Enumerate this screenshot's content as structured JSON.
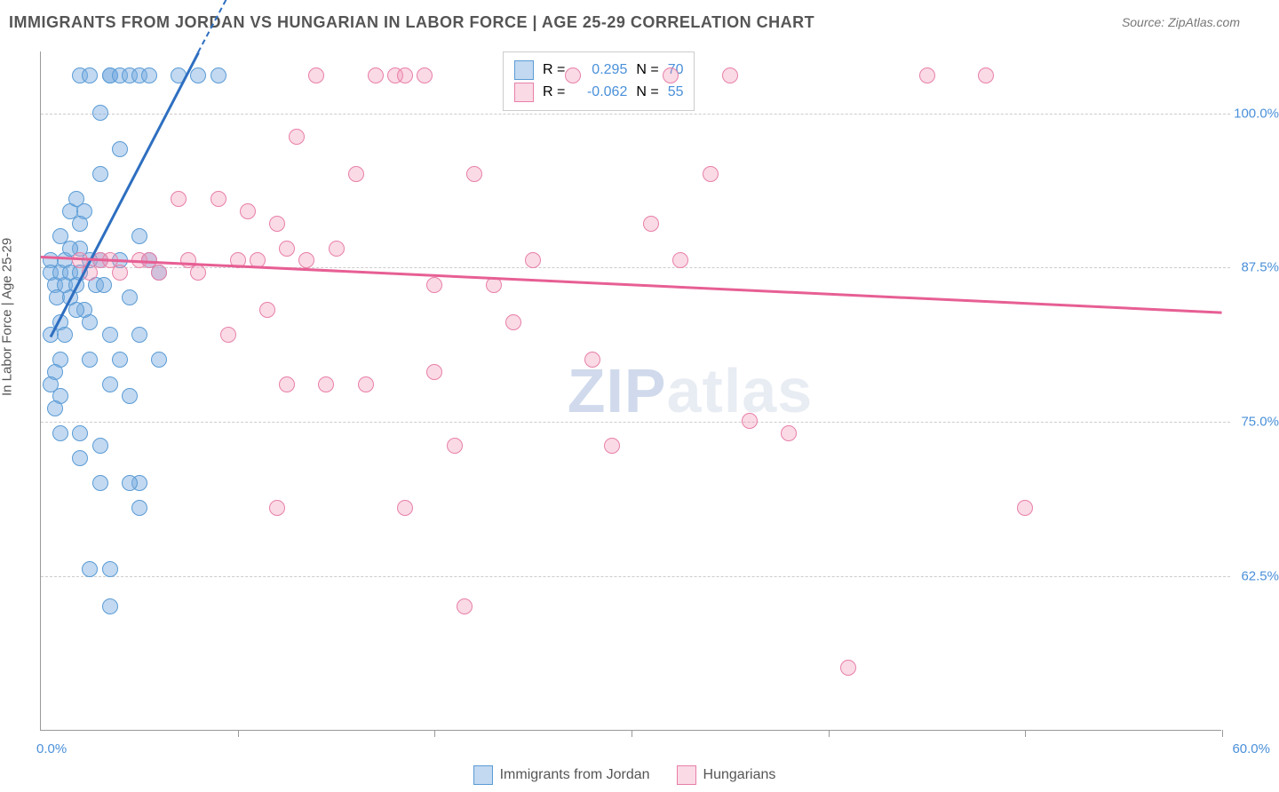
{
  "title": "IMMIGRANTS FROM JORDAN VS HUNGARIAN IN LABOR FORCE | AGE 25-29 CORRELATION CHART",
  "source": "Source: ZipAtlas.com",
  "watermark_a": "ZIP",
  "watermark_b": "atlas",
  "chart": {
    "type": "scatter",
    "ylabel": "In Labor Force | Age 25-29",
    "xlim": [
      0,
      60
    ],
    "ylim": [
      50,
      105
    ],
    "x_axis_left_label": "0.0%",
    "x_axis_right_label": "60.0%",
    "xtick_positions": [
      10,
      20,
      30,
      40,
      50,
      60
    ],
    "ytick_labels": [
      "62.5%",
      "75.0%",
      "87.5%",
      "100.0%"
    ],
    "ytick_values": [
      62.5,
      75.0,
      87.5,
      100.0
    ],
    "grid_color": "#cccccc",
    "background_color": "#ffffff",
    "marker_radius": 9,
    "series": [
      {
        "name": "Immigrants from Jordan",
        "color_fill": "rgba(120,170,225,0.45)",
        "color_stroke": "#5a9bd5",
        "trend_color": "#2e6fc0",
        "R": "0.295",
        "N": "70",
        "trend": {
          "x1": 0.5,
          "y1": 82.0,
          "x2": 8.0,
          "y2": 105.0
        },
        "trend_dash": {
          "x1": 8.0,
          "y1": 105.0,
          "x2": 12.0,
          "y2": 117.0
        },
        "points": [
          [
            0.5,
            88
          ],
          [
            0.5,
            87
          ],
          [
            0.7,
            86
          ],
          [
            0.8,
            85
          ],
          [
            1.0,
            87
          ],
          [
            1.0,
            90
          ],
          [
            1.2,
            88
          ],
          [
            1.2,
            86
          ],
          [
            1.5,
            87
          ],
          [
            1.5,
            85
          ],
          [
            1.5,
            92
          ],
          [
            1.8,
            86
          ],
          [
            2.0,
            87
          ],
          [
            2.0,
            89
          ],
          [
            2.2,
            92
          ],
          [
            2.2,
            84
          ],
          [
            2.5,
            88
          ],
          [
            2.5,
            83
          ],
          [
            2.5,
            80
          ],
          [
            2.8,
            86
          ],
          [
            3.0,
            100
          ],
          [
            3.0,
            95
          ],
          [
            3.0,
            88
          ],
          [
            3.2,
            86
          ],
          [
            3.5,
            103
          ],
          [
            3.5,
            103
          ],
          [
            3.5,
            82
          ],
          [
            3.5,
            78
          ],
          [
            4.0,
            103
          ],
          [
            4.0,
            97
          ],
          [
            4.0,
            88
          ],
          [
            4.0,
            80
          ],
          [
            4.5,
            103
          ],
          [
            4.5,
            85
          ],
          [
            4.5,
            77
          ],
          [
            5.0,
            103
          ],
          [
            5.0,
            90
          ],
          [
            5.0,
            82
          ],
          [
            5.0,
            70
          ],
          [
            5.0,
            68
          ],
          [
            5.5,
            103
          ],
          [
            5.5,
            88
          ],
          [
            6.0,
            87
          ],
          [
            6.0,
            80
          ],
          [
            7.0,
            103
          ],
          [
            8.0,
            103
          ],
          [
            9.0,
            103
          ],
          [
            2.0,
            72
          ],
          [
            2.0,
            74
          ],
          [
            3.0,
            73
          ],
          [
            3.5,
            63
          ],
          [
            3.5,
            60
          ],
          [
            2.5,
            63
          ],
          [
            1.0,
            83
          ],
          [
            1.0,
            80
          ],
          [
            1.0,
            77
          ],
          [
            1.0,
            74
          ],
          [
            0.7,
            79
          ],
          [
            0.7,
            76
          ],
          [
            0.5,
            82
          ],
          [
            0.5,
            78
          ],
          [
            2.0,
            103
          ],
          [
            2.5,
            103
          ],
          [
            1.8,
            93
          ],
          [
            2.0,
            91
          ],
          [
            1.5,
            89
          ],
          [
            4.5,
            70
          ],
          [
            3.0,
            70
          ],
          [
            1.8,
            84
          ],
          [
            1.2,
            82
          ]
        ]
      },
      {
        "name": "Hungarians",
        "color_fill": "rgba(240,150,180,0.35)",
        "color_stroke": "#e87fa8",
        "trend_color": "#e75f94",
        "R": "-0.062",
        "N": "55",
        "trend": {
          "x1": 0.0,
          "y1": 88.5,
          "x2": 60.0,
          "y2": 84.0
        },
        "points": [
          [
            2.0,
            88
          ],
          [
            2.5,
            87
          ],
          [
            3.0,
            88
          ],
          [
            3.5,
            88
          ],
          [
            4.0,
            87
          ],
          [
            5.0,
            88
          ],
          [
            5.5,
            88
          ],
          [
            6.0,
            87
          ],
          [
            7.0,
            93
          ],
          [
            7.5,
            88
          ],
          [
            8.0,
            87
          ],
          [
            9.0,
            93
          ],
          [
            9.5,
            82
          ],
          [
            10.0,
            88
          ],
          [
            10.5,
            92
          ],
          [
            11.0,
            88
          ],
          [
            11.5,
            84
          ],
          [
            12.0,
            91
          ],
          [
            12.5,
            89
          ],
          [
            13.0,
            98
          ],
          [
            13.5,
            88
          ],
          [
            14.0,
            103
          ],
          [
            15.0,
            89
          ],
          [
            16.0,
            95
          ],
          [
            16.5,
            78
          ],
          [
            17.0,
            103
          ],
          [
            18.0,
            103
          ],
          [
            18.5,
            103
          ],
          [
            19.5,
            103
          ],
          [
            20.0,
            86
          ],
          [
            21.0,
            73
          ],
          [
            22.0,
            95
          ],
          [
            23.0,
            86
          ],
          [
            24.0,
            83
          ],
          [
            25.0,
            88
          ],
          [
            27.0,
            103
          ],
          [
            28.0,
            80
          ],
          [
            29.0,
            73
          ],
          [
            31.0,
            91
          ],
          [
            32.0,
            103
          ],
          [
            34.0,
            95
          ],
          [
            35.0,
            103
          ],
          [
            36.0,
            75
          ],
          [
            38.0,
            74
          ],
          [
            41.0,
            55
          ],
          [
            45.0,
            103
          ],
          [
            48.0,
            103
          ],
          [
            50.0,
            68
          ],
          [
            18.5,
            68
          ],
          [
            20.0,
            79
          ],
          [
            21.5,
            60
          ],
          [
            14.5,
            78
          ],
          [
            12.0,
            68
          ],
          [
            12.5,
            78
          ],
          [
            32.5,
            88
          ]
        ]
      }
    ]
  },
  "legend_labels": {
    "R": "R =",
    "N": "N ="
  }
}
